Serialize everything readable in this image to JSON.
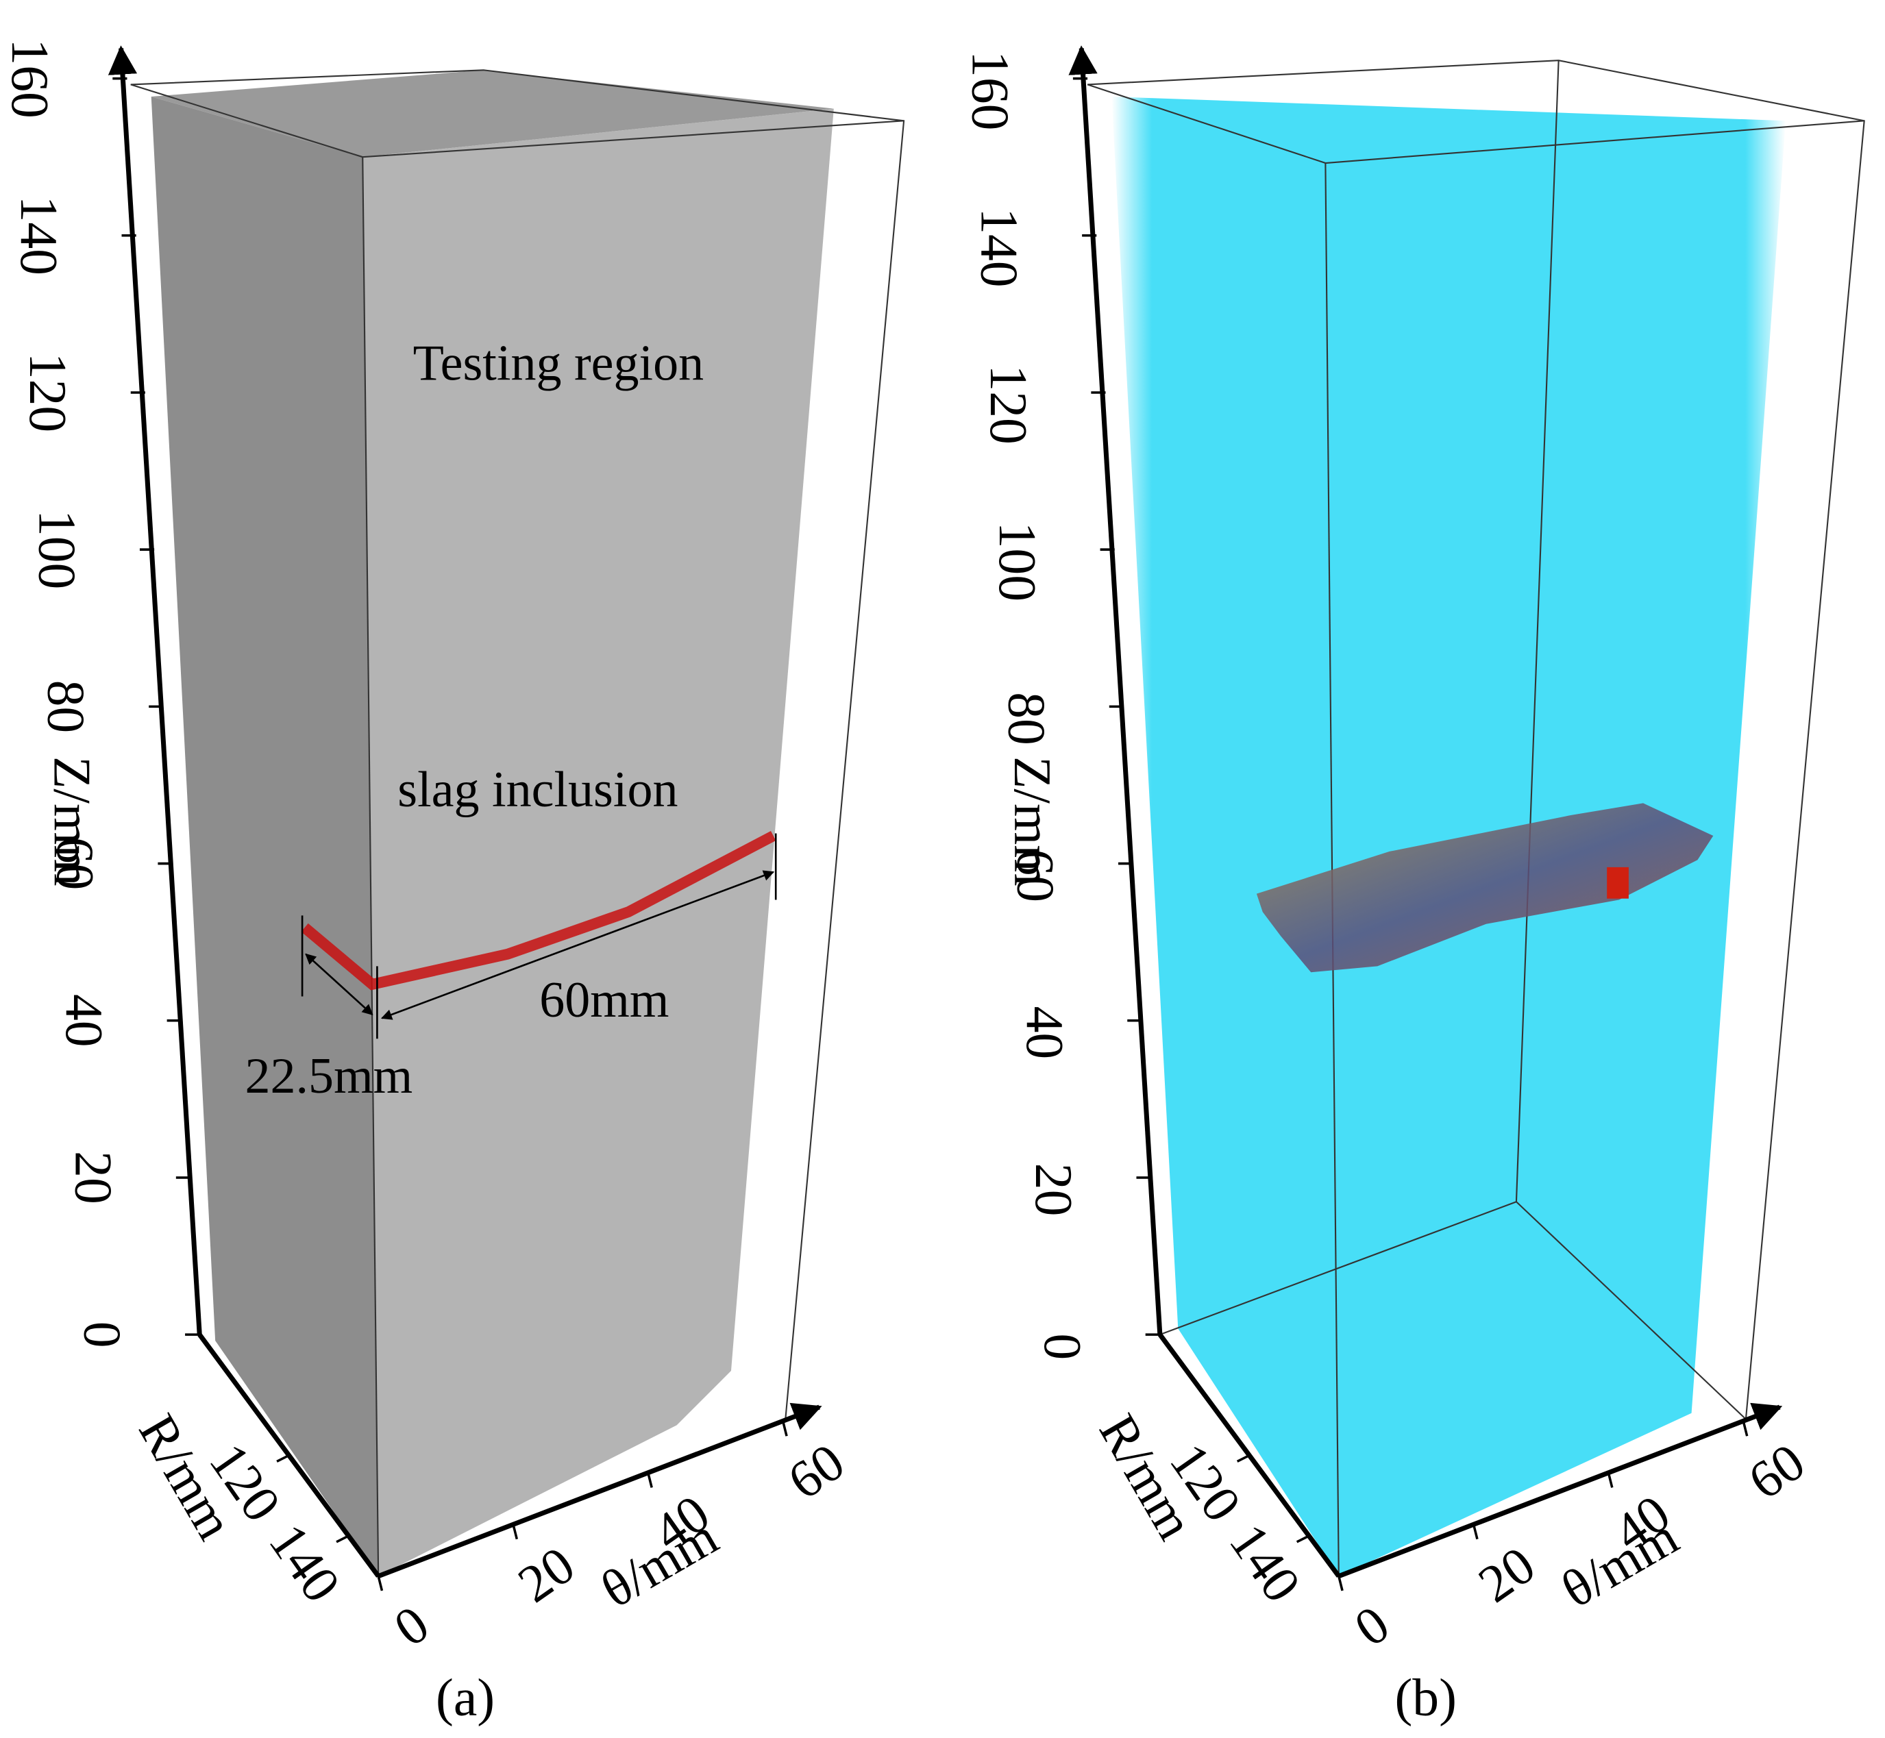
{
  "panels": [
    {
      "z_axis": {
        "label": "Z/mm",
        "ticks": [
          0,
          20,
          40,
          60,
          80,
          100,
          120,
          140,
          160
        ]
      },
      "r_axis": {
        "label": "R/mm",
        "ticks": [
          120,
          140
        ]
      },
      "theta_axis": {
        "label": "θ/mm",
        "ticks": [
          0,
          20,
          40,
          60
        ]
      },
      "annotations": [
        "Testing region",
        "slag inclusion",
        "60mm",
        "22.5mm"
      ],
      "caption": "(a)"
    },
    {
      "z_axis": {
        "label": "Z/mm",
        "ticks": [
          0,
          20,
          40,
          60,
          80,
          100,
          120,
          140,
          160
        ]
      },
      "r_axis": {
        "label": "R/mm",
        "ticks": [
          120,
          140
        ]
      },
      "theta_axis": {
        "label": "θ/mm",
        "ticks": [
          0,
          20,
          40,
          60
        ]
      },
      "caption": "(b)"
    }
  ]
}
